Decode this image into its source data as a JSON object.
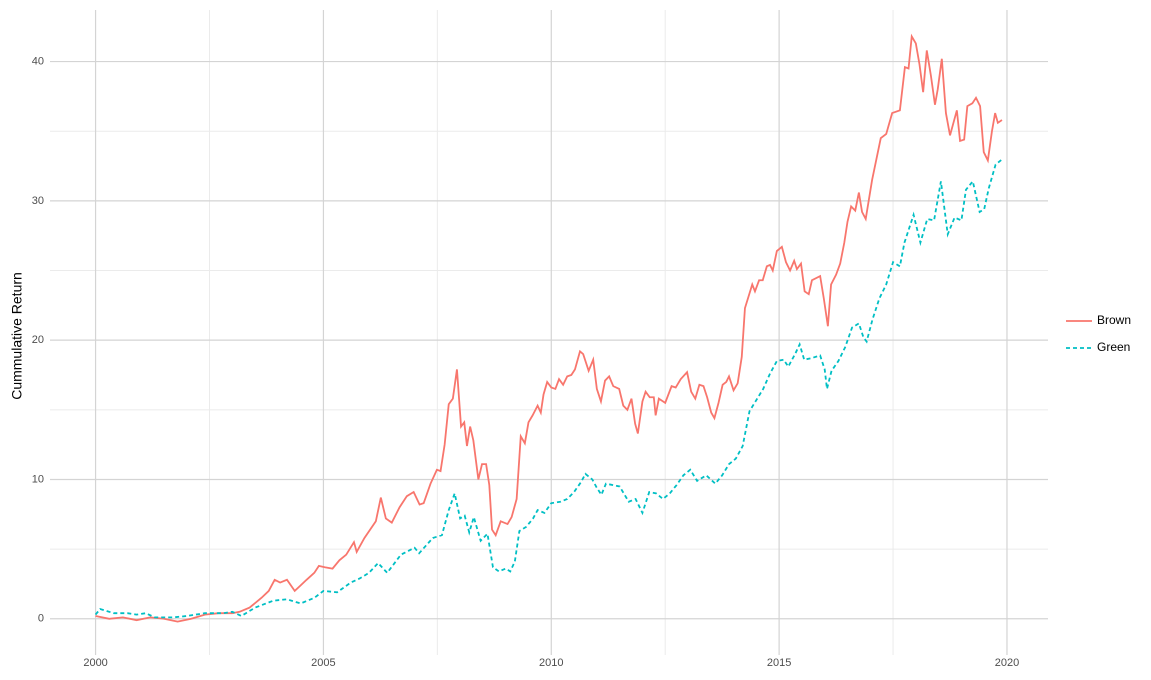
{
  "chart_data": {
    "type": "line",
    "y_label": "Cummulative Return",
    "xlim": [
      1999,
      2020.9
    ],
    "ylim": [
      -2.6,
      43.7
    ],
    "xticks": [
      2000,
      2005,
      2010,
      2015,
      2020
    ],
    "yticks": [
      0,
      10,
      20,
      30,
      40
    ],
    "grid": true,
    "legend": "right",
    "series": [
      {
        "name": "Brown",
        "color": "#F8766D",
        "linestyle": "solid",
        "x": [
          2000.0,
          2000.3,
          2000.6,
          2000.9,
          2001.2,
          2001.5,
          2001.8,
          2002.1,
          2002.4,
          2002.7,
          2003.0,
          2003.16,
          2003.38,
          2003.64,
          2003.8,
          2003.93,
          2004.05,
          2004.2,
          2004.37,
          2004.5,
          2004.63,
          2004.8,
          2004.9,
          2005.03,
          2005.2,
          2005.35,
          2005.5,
          2005.67,
          2005.73,
          2005.9,
          2006.15,
          2006.26,
          2006.37,
          2006.5,
          2006.67,
          2006.83,
          2006.98,
          2007.11,
          2007.2,
          2007.35,
          2007.49,
          2007.57,
          2007.66,
          2007.75,
          2007.84,
          2007.93,
          2008.02,
          2008.09,
          2008.15,
          2008.22,
          2008.29,
          2008.4,
          2008.48,
          2008.57,
          2008.64,
          2008.7,
          2008.78,
          2008.89,
          2009.04,
          2009.13,
          2009.24,
          2009.33,
          2009.42,
          2009.5,
          2009.59,
          2009.7,
          2009.77,
          2009.83,
          2009.91,
          2010.0,
          2010.09,
          2010.17,
          2010.26,
          2010.35,
          2010.44,
          2010.52,
          2010.63,
          2010.7,
          2010.82,
          2010.92,
          2011.0,
          2011.09,
          2011.18,
          2011.27,
          2011.36,
          2011.49,
          2011.58,
          2011.67,
          2011.76,
          2011.84,
          2011.9,
          2012.0,
          2012.07,
          2012.16,
          2012.25,
          2012.29,
          2012.36,
          2012.5,
          2012.64,
          2012.73,
          2012.84,
          2012.98,
          2013.07,
          2013.16,
          2013.25,
          2013.34,
          2013.42,
          2013.51,
          2013.58,
          2013.67,
          2013.76,
          2013.84,
          2013.9,
          2014.0,
          2014.09,
          2014.18,
          2014.25,
          2014.41,
          2014.47,
          2014.56,
          2014.64,
          2014.73,
          2014.8,
          2014.86,
          2014.95,
          2015.06,
          2015.15,
          2015.24,
          2015.33,
          2015.39,
          2015.48,
          2015.56,
          2015.65,
          2015.72,
          2015.9,
          2015.98,
          2016.07,
          2016.14,
          2016.25,
          2016.34,
          2016.43,
          2016.5,
          2016.58,
          2016.67,
          2016.75,
          2016.82,
          2016.9,
          2017.04,
          2017.23,
          2017.35,
          2017.48,
          2017.65,
          2017.76,
          2017.84,
          2017.91,
          2018.0,
          2018.08,
          2018.16,
          2018.24,
          2018.33,
          2018.42,
          2018.48,
          2018.57,
          2018.66,
          2018.75,
          2018.9,
          2018.97,
          2019.06,
          2019.13,
          2019.24,
          2019.32,
          2019.41,
          2019.49,
          2019.58,
          2019.67,
          2019.74,
          2019.8,
          2019.89
        ],
        "values": [
          0.2,
          0.0,
          0.1,
          -0.1,
          0.1,
          0.0,
          -0.2,
          0.0,
          0.3,
          0.4,
          0.4,
          0.5,
          0.8,
          1.5,
          2.0,
          2.8,
          2.6,
          2.8,
          2.0,
          2.4,
          2.8,
          3.3,
          3.8,
          3.7,
          3.6,
          4.2,
          4.6,
          5.5,
          4.8,
          5.8,
          7.0,
          8.7,
          7.2,
          6.9,
          8.0,
          8.8,
          9.1,
          8.2,
          8.3,
          9.7,
          10.7,
          10.6,
          12.5,
          15.4,
          15.8,
          17.9,
          13.8,
          14.1,
          12.4,
          13.8,
          12.8,
          10.0,
          11.1,
          11.1,
          9.6,
          6.4,
          6.0,
          7.0,
          6.8,
          7.3,
          8.6,
          13.1,
          12.6,
          14.1,
          14.6,
          15.3,
          14.8,
          16.1,
          17.0,
          16.6,
          16.5,
          17.2,
          16.8,
          17.4,
          17.5,
          17.9,
          19.2,
          19.0,
          17.8,
          18.6,
          16.5,
          15.6,
          17.1,
          17.4,
          16.7,
          16.5,
          15.3,
          15.0,
          15.8,
          14.0,
          13.3,
          15.6,
          16.3,
          15.9,
          15.9,
          14.6,
          15.8,
          15.5,
          16.7,
          16.6,
          17.2,
          17.7,
          16.3,
          15.8,
          16.8,
          16.7,
          15.9,
          14.8,
          14.4,
          15.5,
          16.8,
          17.0,
          17.4,
          16.4,
          16.9,
          18.8,
          22.3,
          24.0,
          23.5,
          24.3,
          24.3,
          25.3,
          25.4,
          25.0,
          26.4,
          26.7,
          25.6,
          25.0,
          25.7,
          25.1,
          25.5,
          23.5,
          23.3,
          24.3,
          24.6,
          23.0,
          21.0,
          24.0,
          24.7,
          25.5,
          27.0,
          28.5,
          29.6,
          29.3,
          30.6,
          29.2,
          28.7,
          31.5,
          34.5,
          34.8,
          36.3,
          36.5,
          39.6,
          39.5,
          41.8,
          41.3,
          39.8,
          37.8,
          40.8,
          39.0,
          36.9,
          38.0,
          40.2,
          36.3,
          34.7,
          36.5,
          34.3,
          34.4,
          36.8,
          37.0,
          37.4,
          36.8,
          33.5,
          32.9,
          35.0,
          36.3,
          35.6,
          35.8
        ]
      },
      {
        "name": "Green",
        "color": "#00BFC4",
        "linestyle": "dashed",
        "x": [
          2000.0,
          2000.1,
          2000.4,
          2000.7,
          2000.9,
          2001.1,
          2001.3,
          2001.7,
          2002.0,
          2002.4,
          2002.8,
          2003.0,
          2003.2,
          2003.5,
          2003.9,
          2004.2,
          2004.5,
          2004.8,
          2005.0,
          2005.3,
          2005.6,
          2005.8,
          2006.0,
          2006.2,
          2006.4,
          2006.7,
          2007.0,
          2007.1,
          2007.4,
          2007.6,
          2007.75,
          2007.88,
          2008.0,
          2008.1,
          2008.2,
          2008.3,
          2008.45,
          2008.6,
          2008.72,
          2008.85,
          2009.0,
          2009.1,
          2009.2,
          2009.3,
          2009.45,
          2009.6,
          2009.7,
          2009.85,
          2010.0,
          2010.2,
          2010.35,
          2010.5,
          2010.65,
          2010.75,
          2010.9,
          2011.0,
          2011.1,
          2011.2,
          2011.5,
          2011.7,
          2011.85,
          2012.0,
          2012.15,
          2012.3,
          2012.45,
          2012.6,
          2012.75,
          2012.9,
          2013.05,
          2013.2,
          2013.4,
          2013.6,
          2013.75,
          2013.9,
          2014.05,
          2014.2,
          2014.35,
          2014.5,
          2014.65,
          2014.8,
          2014.95,
          2015.1,
          2015.2,
          2015.35,
          2015.45,
          2015.55,
          2015.7,
          2015.9,
          2016.0,
          2016.05,
          2016.15,
          2016.3,
          2016.45,
          2016.6,
          2016.75,
          2016.85,
          2016.92,
          2017.05,
          2017.2,
          2017.35,
          2017.5,
          2017.65,
          2017.75,
          2017.85,
          2017.95,
          2018.1,
          2018.25,
          2018.4,
          2018.55,
          2018.7,
          2018.85,
          2019.0,
          2019.1,
          2019.25,
          2019.4,
          2019.5,
          2019.6,
          2019.75,
          2019.9
        ],
        "values": [
          0.3,
          0.7,
          0.4,
          0.4,
          0.3,
          0.4,
          0.1,
          0.1,
          0.2,
          0.4,
          0.4,
          0.5,
          0.2,
          0.8,
          1.3,
          1.4,
          1.1,
          1.5,
          2.0,
          1.9,
          2.6,
          2.9,
          3.3,
          4.0,
          3.3,
          4.6,
          5.1,
          4.7,
          5.8,
          6.0,
          7.8,
          9.0,
          7.2,
          7.4,
          6.2,
          7.3,
          5.6,
          6.1,
          3.7,
          3.4,
          3.6,
          3.4,
          4.1,
          6.3,
          6.6,
          7.2,
          7.8,
          7.6,
          8.3,
          8.4,
          8.6,
          9.1,
          9.8,
          10.4,
          10.0,
          9.4,
          8.9,
          9.7,
          9.5,
          8.4,
          8.6,
          7.6,
          9.1,
          9.0,
          8.6,
          9.0,
          9.6,
          10.3,
          10.7,
          9.9,
          10.3,
          9.7,
          10.3,
          11.1,
          11.5,
          12.4,
          14.9,
          15.7,
          16.5,
          17.6,
          18.5,
          18.6,
          18.1,
          19.0,
          19.7,
          18.6,
          18.7,
          18.9,
          17.9,
          16.5,
          17.8,
          18.5,
          19.5,
          20.9,
          21.2,
          20.2,
          19.9,
          21.5,
          23.0,
          24.0,
          25.6,
          25.3,
          27.0,
          28.0,
          29.0,
          27.0,
          28.7,
          28.6,
          31.4,
          27.6,
          28.8,
          28.6,
          30.8,
          31.4,
          29.2,
          29.4,
          30.9,
          32.6,
          33.0
        ]
      }
    ]
  }
}
